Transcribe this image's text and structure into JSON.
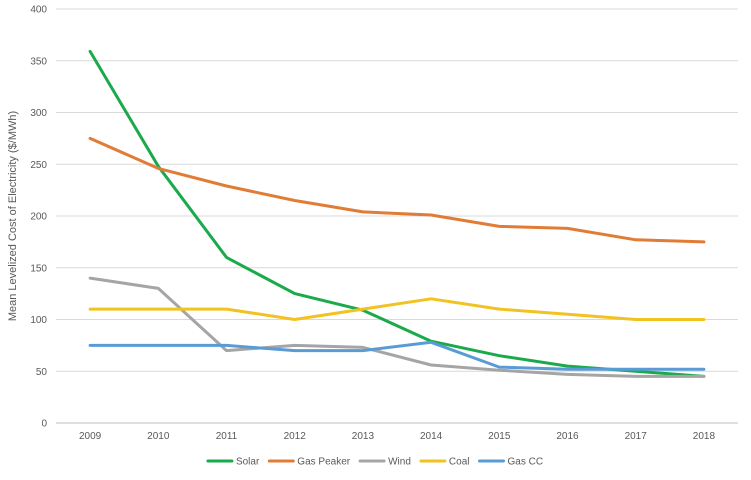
{
  "chart_data": {
    "type": "line",
    "title": "",
    "xlabel": "",
    "ylabel": "Mean Levelized Cost of Electricity ($/MWh)",
    "ylim": [
      0,
      400
    ],
    "yticks": [
      0,
      50,
      100,
      150,
      200,
      250,
      300,
      350,
      400
    ],
    "categories": [
      "2009",
      "2010",
      "2011",
      "2012",
      "2013",
      "2014",
      "2015",
      "2016",
      "2017",
      "2018"
    ],
    "grid": true,
    "legend_position": "bottom",
    "series": [
      {
        "name": "Solar",
        "color": "#1aaa4b",
        "values": [
          359,
          248,
          160,
          125,
          109,
          79,
          65,
          55,
          50,
          45
        ]
      },
      {
        "name": "Gas Peaker",
        "color": "#e07c35",
        "values": [
          275,
          246,
          229,
          215,
          204,
          201,
          190,
          188,
          177,
          175
        ]
      },
      {
        "name": "Wind",
        "color": "#a5a5a5",
        "values": [
          140,
          130,
          70,
          75,
          73,
          56,
          51,
          47,
          45,
          45
        ]
      },
      {
        "name": "Coal",
        "color": "#f2c222",
        "values": [
          110,
          110,
          110,
          100,
          110,
          120,
          110,
          105,
          100,
          100
        ]
      },
      {
        "name": "Gas CC",
        "color": "#5a9bd5",
        "values": [
          75,
          75,
          75,
          70,
          70,
          78,
          54,
          52,
          52,
          52
        ]
      }
    ]
  }
}
